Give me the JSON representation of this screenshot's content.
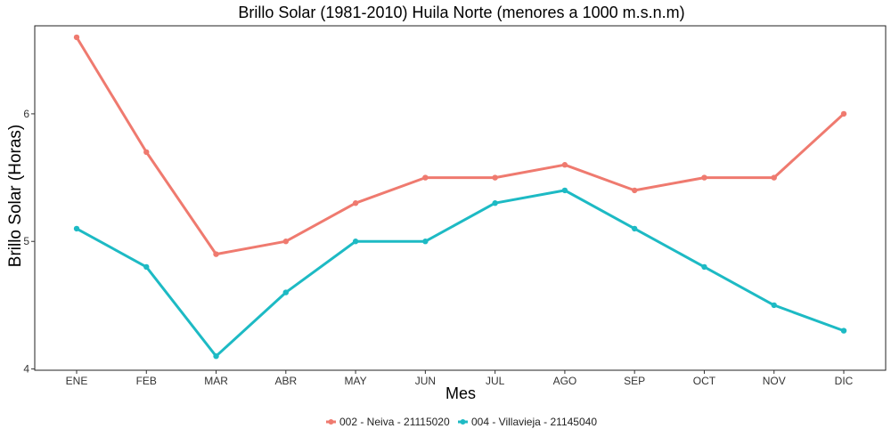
{
  "chart_data": {
    "type": "line",
    "title": "Brillo Solar (1981-2010) Huila Norte (menores a 1000 m.s.n.m)",
    "xlabel": "Mes",
    "ylabel": "Brillo Solar (Horas)",
    "categories": [
      "ENE",
      "FEB",
      "MAR",
      "ABR",
      "MAY",
      "JUN",
      "JUL",
      "AGO",
      "SEP",
      "OCT",
      "NOV",
      "DIC"
    ],
    "ylim": [
      3.99,
      6.69
    ],
    "yticks": [
      4,
      5,
      6
    ],
    "grid": false,
    "legend_position": "bottom",
    "series": [
      {
        "name": "002 - Neiva - 21115020",
        "color": "#ef7a6f",
        "values": [
          6.6,
          5.7,
          4.9,
          5.0,
          5.3,
          5.5,
          5.5,
          5.6,
          5.4,
          5.5,
          5.5,
          6.0
        ]
      },
      {
        "name": "004 - Villavieja - 21145040",
        "color": "#1dbac4",
        "values": [
          5.1,
          4.8,
          4.1,
          4.6,
          5.0,
          5.0,
          5.3,
          5.4,
          5.1,
          4.8,
          4.5,
          4.3
        ]
      }
    ]
  }
}
